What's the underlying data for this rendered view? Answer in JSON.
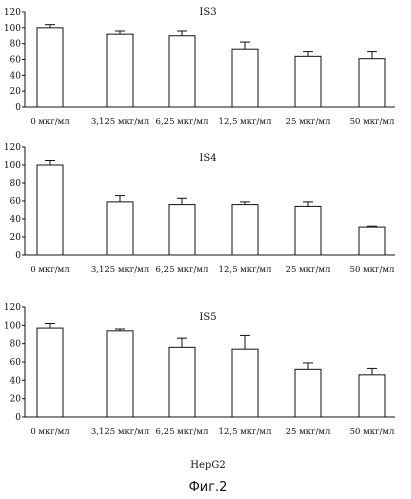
{
  "chart_data": [
    {
      "type": "bar",
      "title": "IS3",
      "categories": [
        "0 мкг/мл",
        "3,125 мкг/мл",
        "6,25 мкг/мл",
        "12,5 мкг/мл",
        "25 мкг/мл",
        "50 мкг/мл"
      ],
      "values": [
        100,
        92,
        90,
        73,
        64,
        61
      ],
      "errors": [
        4,
        4,
        6,
        9,
        6,
        9
      ],
      "ylim": [
        0,
        120
      ],
      "yticks": [
        0,
        20,
        40,
        60,
        80,
        100,
        120
      ]
    },
    {
      "type": "bar",
      "title": "IS4",
      "categories": [
        "0 мкг/мл",
        "3,125 мкг/мл",
        "6,25 мкг/мл",
        "12,5 мкг/мл",
        "25 мкг/мл",
        "50 мкг/мл"
      ],
      "values": [
        100,
        59,
        56,
        56,
        54,
        31
      ],
      "errors": [
        5,
        7,
        7,
        3,
        5,
        1
      ],
      "ylim": [
        0,
        120
      ],
      "yticks": [
        0,
        20,
        40,
        60,
        80,
        100,
        120
      ]
    },
    {
      "type": "bar",
      "title": "IS5",
      "categories": [
        "0 мкг/мл",
        "3,125 мкг/мл",
        "6,25 мкг/мл",
        "12,5 мкг/мл",
        "25 мкг/мл",
        "50 мкг/мл"
      ],
      "values": [
        97,
        94,
        76,
        74,
        52,
        46
      ],
      "errors": [
        5,
        2,
        10,
        15,
        7,
        7
      ],
      "ylim": [
        0,
        120
      ],
      "yticks": [
        0,
        20,
        40,
        60,
        80,
        100,
        120
      ]
    }
  ],
  "footer_label": "HepG2",
  "figure_caption": "Фиг.2"
}
